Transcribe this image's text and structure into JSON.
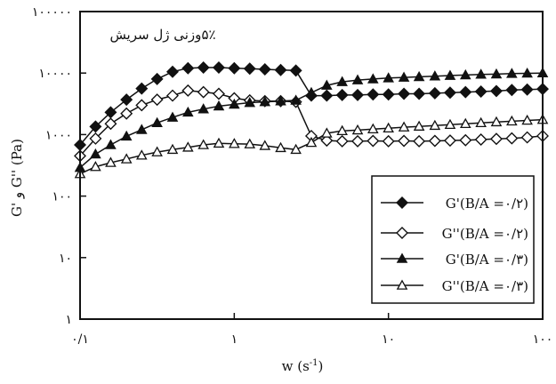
{
  "chart_data": {
    "type": "line",
    "x_scale": "log",
    "y_scale": "log",
    "xlim": [
      0.1,
      100
    ],
    "ylim": [
      1,
      100000
    ],
    "xlabel_main": "w (s",
    "xlabel_sup": "-1",
    "xlabel_close": ")",
    "ylabel": "G' و G'' (Pa)",
    "annotation": "۵٪وزنی ژل سریش",
    "x_ticks": [
      {
        "value": 0.1,
        "label": "۰/۱"
      },
      {
        "value": 1,
        "label": "۱"
      },
      {
        "value": 10,
        "label": "۱۰"
      },
      {
        "value": 100,
        "label": "۱۰۰"
      }
    ],
    "y_ticks": [
      {
        "value": 1,
        "label": "۱"
      },
      {
        "value": 10,
        "label": "۱۰"
      },
      {
        "value": 100,
        "label": "۱۰۰"
      },
      {
        "value": 1000,
        "label": "۱۰۰۰"
      },
      {
        "value": 10000,
        "label": "۱۰۰۰۰"
      },
      {
        "value": 100000,
        "label": "۱۰۰۰۰۰"
      }
    ],
    "legend_position": "bottom-right",
    "series": [
      {
        "name": "G'(B/A =۰/۲)",
        "marker": "diamond-filled",
        "points": [
          [
            0.1,
            680
          ],
          [
            0.126,
            1350
          ],
          [
            0.158,
            2300
          ],
          [
            0.2,
            3700
          ],
          [
            0.251,
            5600
          ],
          [
            0.316,
            8000
          ],
          [
            0.398,
            10500
          ],
          [
            0.501,
            12000
          ],
          [
            0.631,
            12300
          ],
          [
            0.794,
            12300
          ],
          [
            1.0,
            12000
          ],
          [
            1.26,
            11800
          ],
          [
            1.58,
            11500
          ],
          [
            2.0,
            11200
          ],
          [
            2.51,
            11000
          ],
          [
            3.16,
            4300
          ],
          [
            3.98,
            4300
          ],
          [
            5.01,
            4400
          ],
          [
            6.31,
            4400
          ],
          [
            7.94,
            4500
          ],
          [
            10.0,
            4500
          ],
          [
            12.6,
            4600
          ],
          [
            15.8,
            4600
          ],
          [
            20.0,
            4700
          ],
          [
            25.1,
            4800
          ],
          [
            31.6,
            4900
          ],
          [
            39.8,
            5000
          ],
          [
            50.1,
            5100
          ],
          [
            63.1,
            5300
          ],
          [
            79.4,
            5400
          ],
          [
            100,
            5500
          ]
        ]
      },
      {
        "name": "G''(B/A =۰/۲)",
        "marker": "diamond-open",
        "points": [
          [
            0.1,
            450
          ],
          [
            0.126,
            860
          ],
          [
            0.158,
            1500
          ],
          [
            0.2,
            2200
          ],
          [
            0.251,
            3000
          ],
          [
            0.316,
            3700
          ],
          [
            0.398,
            4300
          ],
          [
            0.501,
            5200
          ],
          [
            0.631,
            4900
          ],
          [
            0.794,
            4600
          ],
          [
            1.0,
            3900
          ],
          [
            1.26,
            3600
          ],
          [
            1.58,
            3500
          ],
          [
            2.0,
            3500
          ],
          [
            2.51,
            3400
          ],
          [
            3.16,
            950
          ],
          [
            3.98,
            800
          ],
          [
            5.01,
            780
          ],
          [
            6.31,
            780
          ],
          [
            7.94,
            790
          ],
          [
            10.0,
            780
          ],
          [
            12.6,
            790
          ],
          [
            15.8,
            780
          ],
          [
            20.0,
            790
          ],
          [
            25.1,
            800
          ],
          [
            31.6,
            810
          ],
          [
            39.8,
            830
          ],
          [
            50.1,
            850
          ],
          [
            63.1,
            870
          ],
          [
            79.4,
            900
          ],
          [
            100,
            950
          ]
        ]
      },
      {
        "name": "G'(B/A =۰/۳)",
        "marker": "triangle-filled",
        "points": [
          [
            0.1,
            290
          ],
          [
            0.126,
            480
          ],
          [
            0.158,
            680
          ],
          [
            0.2,
            940
          ],
          [
            0.251,
            1200
          ],
          [
            0.316,
            1550
          ],
          [
            0.398,
            1900
          ],
          [
            0.501,
            2300
          ],
          [
            0.631,
            2600
          ],
          [
            0.794,
            2900
          ],
          [
            1.0,
            3100
          ],
          [
            1.26,
            3300
          ],
          [
            1.58,
            3400
          ],
          [
            2.0,
            3500
          ],
          [
            2.51,
            3600
          ],
          [
            3.16,
            4800
          ],
          [
            3.98,
            6300
          ],
          [
            5.01,
            7200
          ],
          [
            6.31,
            7700
          ],
          [
            7.94,
            8000
          ],
          [
            10.0,
            8300
          ],
          [
            12.6,
            8500
          ],
          [
            15.8,
            8700
          ],
          [
            20.0,
            8900
          ],
          [
            25.1,
            9100
          ],
          [
            31.6,
            9300
          ],
          [
            39.8,
            9500
          ],
          [
            50.1,
            9600
          ],
          [
            63.1,
            9800
          ],
          [
            79.4,
            9900
          ],
          [
            100,
            10000
          ]
        ]
      },
      {
        "name": "G''(B/A =۰/۳)",
        "marker": "triangle-open",
        "points": [
          [
            0.1,
            230
          ],
          [
            0.126,
            300
          ],
          [
            0.158,
            350
          ],
          [
            0.2,
            400
          ],
          [
            0.251,
            460
          ],
          [
            0.316,
            520
          ],
          [
            0.398,
            570
          ],
          [
            0.501,
            620
          ],
          [
            0.631,
            680
          ],
          [
            0.794,
            720
          ],
          [
            1.0,
            710
          ],
          [
            1.26,
            700
          ],
          [
            1.58,
            660
          ],
          [
            2.0,
            610
          ],
          [
            2.51,
            570
          ],
          [
            3.16,
            740
          ],
          [
            3.98,
            1050
          ],
          [
            5.01,
            1150
          ],
          [
            6.31,
            1180
          ],
          [
            7.94,
            1230
          ],
          [
            10.0,
            1270
          ],
          [
            12.6,
            1320
          ],
          [
            15.8,
            1360
          ],
          [
            20.0,
            1400
          ],
          [
            25.1,
            1450
          ],
          [
            31.6,
            1500
          ],
          [
            39.8,
            1550
          ],
          [
            50.1,
            1600
          ],
          [
            63.1,
            1650
          ],
          [
            79.4,
            1700
          ],
          [
            100,
            1750
          ]
        ]
      }
    ]
  }
}
